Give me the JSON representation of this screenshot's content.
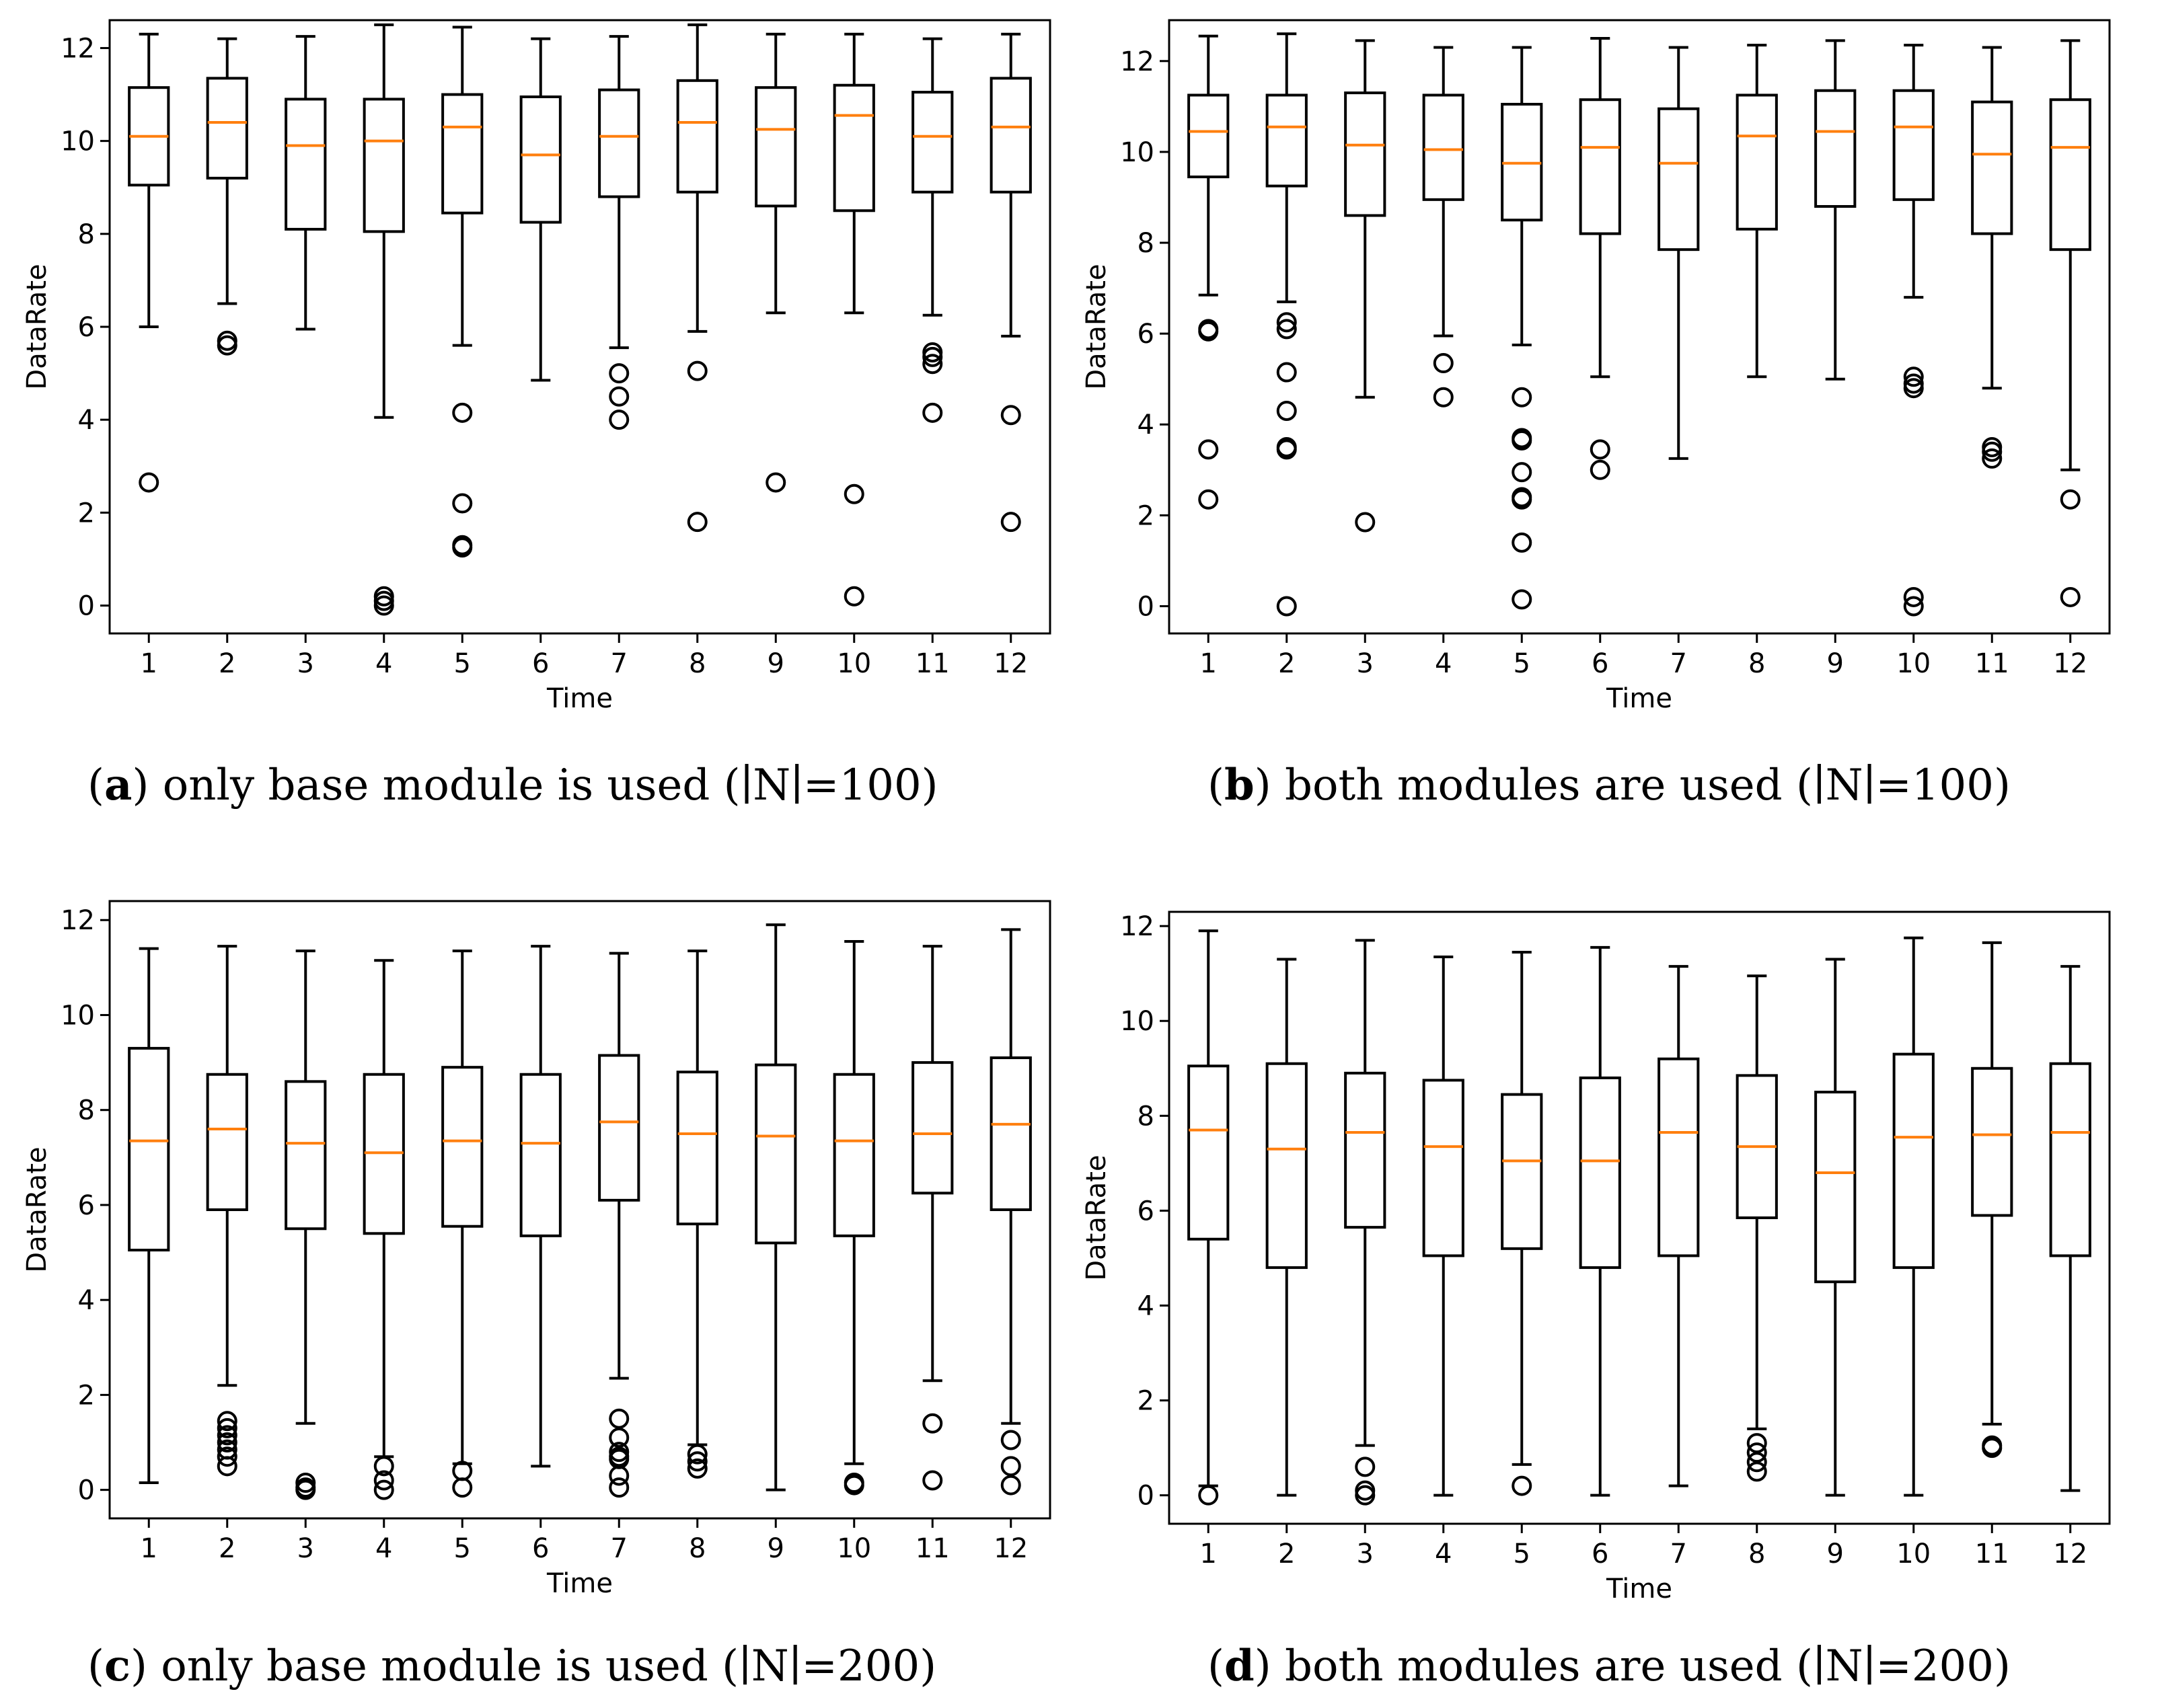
{
  "colors": {
    "median": "#ff7f0e",
    "box": "#000000",
    "background": "#ffffff"
  },
  "chart_data": [
    {
      "id": "a",
      "type": "boxplot",
      "caption": {
        "letter": "a",
        "text": "only base module is used (∣N∣=100)"
      },
      "xlabel": "Time",
      "ylabel": "DataRate",
      "ylim": [
        -0.6,
        12.6
      ],
      "yticks": [
        0,
        2,
        4,
        6,
        8,
        10,
        12
      ],
      "categories": [
        "1",
        "2",
        "3",
        "4",
        "5",
        "6",
        "7",
        "8",
        "9",
        "10",
        "11",
        "12"
      ],
      "boxes": [
        {
          "whislo": 6.0,
          "q1": 9.05,
          "med": 10.1,
          "q3": 11.15,
          "whishi": 12.3,
          "fliers": [
            2.65
          ]
        },
        {
          "whislo": 6.5,
          "q1": 9.2,
          "med": 10.4,
          "q3": 11.35,
          "whishi": 12.2,
          "fliers": [
            5.6,
            5.7
          ]
        },
        {
          "whislo": 5.95,
          "q1": 8.1,
          "med": 9.9,
          "q3": 10.9,
          "whishi": 12.25,
          "fliers": []
        },
        {
          "whislo": 4.05,
          "q1": 8.05,
          "med": 10.0,
          "q3": 10.9,
          "whishi": 12.5,
          "fliers": [
            0.0,
            0.1,
            0.2
          ]
        },
        {
          "whislo": 5.6,
          "q1": 8.45,
          "med": 10.3,
          "q3": 11.0,
          "whishi": 12.45,
          "fliers": [
            4.15,
            2.2,
            1.3,
            1.25
          ]
        },
        {
          "whislo": 4.85,
          "q1": 8.25,
          "med": 9.7,
          "q3": 10.95,
          "whishi": 12.2,
          "fliers": []
        },
        {
          "whislo": 5.55,
          "q1": 8.8,
          "med": 10.1,
          "q3": 11.1,
          "whishi": 12.25,
          "fliers": [
            5.0,
            4.5,
            4.0
          ]
        },
        {
          "whislo": 5.9,
          "q1": 8.9,
          "med": 10.4,
          "q3": 11.3,
          "whishi": 12.5,
          "fliers": [
            5.05,
            1.8
          ]
        },
        {
          "whislo": 6.3,
          "q1": 8.6,
          "med": 10.25,
          "q3": 11.15,
          "whishi": 12.3,
          "fliers": [
            2.65
          ]
        },
        {
          "whislo": 6.3,
          "q1": 8.5,
          "med": 10.55,
          "q3": 11.2,
          "whishi": 12.3,
          "fliers": [
            2.4,
            0.2
          ]
        },
        {
          "whislo": 6.25,
          "q1": 8.9,
          "med": 10.1,
          "q3": 11.05,
          "whishi": 12.2,
          "fliers": [
            5.2,
            5.35,
            5.45,
            4.15
          ]
        },
        {
          "whislo": 5.8,
          "q1": 8.9,
          "med": 10.3,
          "q3": 11.35,
          "whishi": 12.3,
          "fliers": [
            4.1,
            1.8
          ]
        }
      ]
    },
    {
      "id": "b",
      "type": "boxplot",
      "caption": {
        "letter": "b",
        "text": "both modules are used (∣N∣=100)"
      },
      "xlabel": "Time",
      "ylabel": "DataRate",
      "ylim": [
        -0.6,
        12.9
      ],
      "yticks": [
        0,
        2,
        4,
        6,
        8,
        10,
        12
      ],
      "categories": [
        "1",
        "2",
        "3",
        "4",
        "5",
        "6",
        "7",
        "8",
        "9",
        "10",
        "11",
        "12"
      ],
      "boxes": [
        {
          "whislo": 6.85,
          "q1": 9.45,
          "med": 10.45,
          "q3": 11.25,
          "whishi": 12.55,
          "fliers": [
            6.05,
            6.1,
            3.45,
            2.35
          ]
        },
        {
          "whislo": 6.7,
          "q1": 9.25,
          "med": 10.55,
          "q3": 11.25,
          "whishi": 12.6,
          "fliers": [
            6.1,
            6.25,
            5.15,
            4.3,
            3.5,
            3.45,
            0.0
          ]
        },
        {
          "whislo": 4.6,
          "q1": 8.6,
          "med": 10.15,
          "q3": 11.3,
          "whishi": 12.45,
          "fliers": [
            1.85
          ]
        },
        {
          "whislo": 5.95,
          "q1": 8.95,
          "med": 10.05,
          "q3": 11.25,
          "whishi": 12.3,
          "fliers": [
            5.35,
            4.6
          ]
        },
        {
          "whislo": 5.75,
          "q1": 8.5,
          "med": 9.75,
          "q3": 11.05,
          "whishi": 12.3,
          "fliers": [
            4.6,
            3.7,
            3.65,
            2.95,
            2.4,
            2.35,
            1.4,
            0.15
          ]
        },
        {
          "whislo": 5.05,
          "q1": 8.2,
          "med": 10.1,
          "q3": 11.15,
          "whishi": 12.5,
          "fliers": [
            3.45,
            3.0
          ]
        },
        {
          "whislo": 3.25,
          "q1": 7.85,
          "med": 9.75,
          "q3": 10.95,
          "whishi": 12.3,
          "fliers": []
        },
        {
          "whislo": 5.05,
          "q1": 8.3,
          "med": 10.35,
          "q3": 11.25,
          "whishi": 12.35,
          "fliers": []
        },
        {
          "whislo": 5.0,
          "q1": 8.8,
          "med": 10.45,
          "q3": 11.35,
          "whishi": 12.45,
          "fliers": []
        },
        {
          "whislo": 6.8,
          "q1": 8.95,
          "med": 10.55,
          "q3": 11.35,
          "whishi": 12.35,
          "fliers": [
            5.05,
            4.9,
            4.8,
            0.2,
            0.0
          ]
        },
        {
          "whislo": 4.8,
          "q1": 8.2,
          "med": 9.95,
          "q3": 11.1,
          "whishi": 12.3,
          "fliers": [
            3.5,
            3.4,
            3.25
          ]
        },
        {
          "whislo": 3.0,
          "q1": 7.85,
          "med": 10.1,
          "q3": 11.15,
          "whishi": 12.45,
          "fliers": [
            2.35,
            0.2
          ]
        }
      ]
    },
    {
      "id": "c",
      "type": "boxplot",
      "caption": {
        "letter": "c",
        "text": "only base module is used (∣N∣=200)"
      },
      "xlabel": "Time",
      "ylabel": "DataRate",
      "ylim": [
        -0.6,
        12.4
      ],
      "yticks": [
        0,
        2,
        4,
        6,
        8,
        10,
        12
      ],
      "categories": [
        "1",
        "2",
        "3",
        "4",
        "5",
        "6",
        "7",
        "8",
        "9",
        "10",
        "11",
        "12"
      ],
      "boxes": [
        {
          "whislo": 0.15,
          "q1": 5.05,
          "med": 7.35,
          "q3": 9.3,
          "whishi": 11.4,
          "fliers": []
        },
        {
          "whislo": 2.2,
          "q1": 5.9,
          "med": 7.6,
          "q3": 8.75,
          "whishi": 11.45,
          "fliers": [
            1.45,
            1.3,
            1.15,
            1.0,
            0.85,
            0.7,
            0.5
          ]
        },
        {
          "whislo": 1.4,
          "q1": 5.5,
          "med": 7.3,
          "q3": 8.6,
          "whishi": 11.35,
          "fliers": [
            0.15,
            0.05,
            0.0
          ]
        },
        {
          "whislo": 0.7,
          "q1": 5.4,
          "med": 7.1,
          "q3": 8.75,
          "whishi": 11.15,
          "fliers": [
            0.5,
            0.2,
            0.0
          ]
        },
        {
          "whislo": 0.55,
          "q1": 5.55,
          "med": 7.35,
          "q3": 8.9,
          "whishi": 11.35,
          "fliers": [
            0.4,
            0.05
          ]
        },
        {
          "whislo": 0.5,
          "q1": 5.35,
          "med": 7.3,
          "q3": 8.75,
          "whishi": 11.45,
          "fliers": []
        },
        {
          "whislo": 2.35,
          "q1": 6.1,
          "med": 7.75,
          "q3": 9.15,
          "whishi": 11.3,
          "fliers": [
            1.5,
            1.1,
            0.8,
            0.7,
            0.65,
            0.3,
            0.05
          ]
        },
        {
          "whislo": 0.95,
          "q1": 5.6,
          "med": 7.5,
          "q3": 8.8,
          "whishi": 11.35,
          "fliers": [
            0.75,
            0.6,
            0.45
          ]
        },
        {
          "whislo": 0.0,
          "q1": 5.2,
          "med": 7.45,
          "q3": 8.95,
          "whishi": 11.9,
          "fliers": []
        },
        {
          "whislo": 0.55,
          "q1": 5.35,
          "med": 7.35,
          "q3": 8.75,
          "whishi": 11.55,
          "fliers": [
            0.15,
            0.1
          ]
        },
        {
          "whislo": 2.3,
          "q1": 6.25,
          "med": 7.5,
          "q3": 9.0,
          "whishi": 11.45,
          "fliers": [
            1.4,
            0.2
          ]
        },
        {
          "whislo": 1.4,
          "q1": 5.9,
          "med": 7.7,
          "q3": 9.1,
          "whishi": 11.8,
          "fliers": [
            1.05,
            0.5,
            0.1
          ]
        }
      ]
    },
    {
      "id": "d",
      "type": "boxplot",
      "caption": {
        "letter": "d",
        "text": "both modules are used (∣N∣=200)"
      },
      "xlabel": "Time",
      "ylabel": "DataRate",
      "ylim": [
        -0.6,
        12.3
      ],
      "yticks": [
        0,
        2,
        4,
        6,
        8,
        10,
        12
      ],
      "categories": [
        "1",
        "2",
        "3",
        "4",
        "5",
        "6",
        "7",
        "8",
        "9",
        "10",
        "11",
        "12"
      ],
      "boxes": [
        {
          "whislo": 0.2,
          "q1": 5.4,
          "med": 7.7,
          "q3": 9.05,
          "whishi": 11.9,
          "fliers": [
            0.0
          ]
        },
        {
          "whislo": 0.0,
          "q1": 4.8,
          "med": 7.3,
          "q3": 9.1,
          "whishi": 11.3,
          "fliers": []
        },
        {
          "whislo": 1.05,
          "q1": 5.65,
          "med": 7.65,
          "q3": 8.9,
          "whishi": 11.7,
          "fliers": [
            0.6,
            0.1,
            0.0
          ]
        },
        {
          "whislo": 0.0,
          "q1": 5.05,
          "med": 7.35,
          "q3": 8.75,
          "whishi": 11.35,
          "fliers": []
        },
        {
          "whislo": 0.65,
          "q1": 5.2,
          "med": 7.05,
          "q3": 8.45,
          "whishi": 11.45,
          "fliers": [
            0.2
          ]
        },
        {
          "whislo": 0.0,
          "q1": 4.8,
          "med": 7.05,
          "q3": 8.8,
          "whishi": 11.55,
          "fliers": []
        },
        {
          "whislo": 0.2,
          "q1": 5.05,
          "med": 7.65,
          "q3": 9.2,
          "whishi": 11.15,
          "fliers": []
        },
        {
          "whislo": 1.4,
          "q1": 5.85,
          "med": 7.35,
          "q3": 8.85,
          "whishi": 10.95,
          "fliers": [
            1.1,
            0.9,
            0.7,
            0.5
          ]
        },
        {
          "whislo": 0.0,
          "q1": 4.5,
          "med": 6.8,
          "q3": 8.5,
          "whishi": 11.3,
          "fliers": []
        },
        {
          "whislo": 0.0,
          "q1": 4.8,
          "med": 7.55,
          "q3": 9.3,
          "whishi": 11.75,
          "fliers": []
        },
        {
          "whislo": 1.5,
          "q1": 5.9,
          "med": 7.6,
          "q3": 9.0,
          "whishi": 11.65,
          "fliers": [
            1.05,
            1.0
          ]
        },
        {
          "whislo": 0.1,
          "q1": 5.05,
          "med": 7.65,
          "q3": 9.1,
          "whishi": 11.15,
          "fliers": []
        }
      ]
    }
  ]
}
